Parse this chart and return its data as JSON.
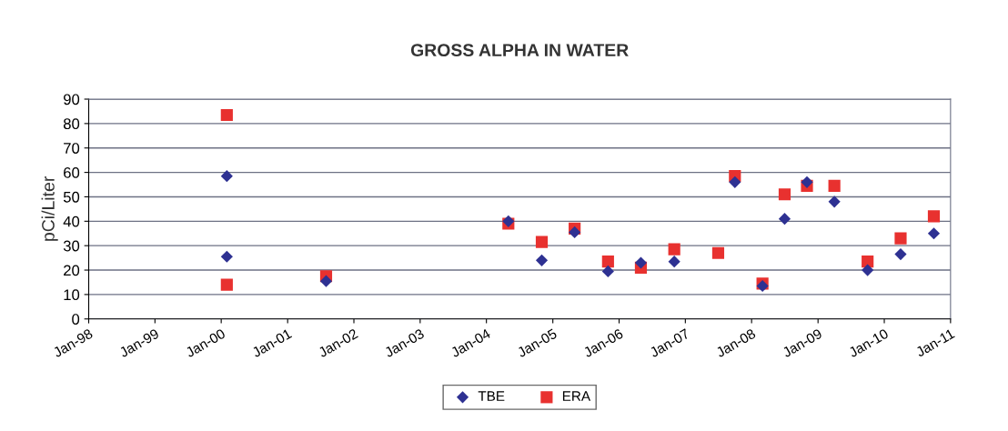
{
  "chart_data": {
    "type": "scatter",
    "title": "GROSS ALPHA IN WATER",
    "ylabel": "pCi/Liter",
    "xlim": [
      "1998-01-01",
      "2011-01-01"
    ],
    "xticks": [
      {
        "value": "1998-01-01",
        "label": "Jan-98"
      },
      {
        "value": "1999-01-01",
        "label": "Jan-99"
      },
      {
        "value": "2000-01-01",
        "label": "Jan-00"
      },
      {
        "value": "2001-01-01",
        "label": "Jan-01"
      },
      {
        "value": "2002-01-01",
        "label": "Jan-02"
      },
      {
        "value": "2003-01-01",
        "label": "Jan-03"
      },
      {
        "value": "2004-01-01",
        "label": "Jan-04"
      },
      {
        "value": "2005-01-01",
        "label": "Jan-05"
      },
      {
        "value": "2006-01-01",
        "label": "Jan-06"
      },
      {
        "value": "2007-01-01",
        "label": "Jan-07"
      },
      {
        "value": "2008-01-01",
        "label": "Jan-08"
      },
      {
        "value": "2009-01-01",
        "label": "Jan-09"
      },
      {
        "value": "2010-01-01",
        "label": "Jan-10"
      },
      {
        "value": "2011-01-01",
        "label": "Jan-11"
      }
    ],
    "ylim": [
      0,
      90
    ],
    "yticks": [
      0,
      10,
      20,
      30,
      40,
      50,
      60,
      70,
      80,
      90
    ],
    "grid": "y",
    "legend": "bottom",
    "series": [
      {
        "name": "TBE",
        "color": "#2e3192",
        "marker": "diamond",
        "x": [
          "2000-02",
          "2000-02",
          "2001-08",
          "2004-05",
          "2004-11",
          "2005-05",
          "2005-11",
          "2006-05",
          "2006-11",
          "2007-10",
          "2008-03",
          "2008-07",
          "2008-11",
          "2009-04",
          "2009-10",
          "2010-04",
          "2010-10"
        ],
        "values": [
          58.5,
          25.5,
          15.5,
          40,
          24,
          35.5,
          19.5,
          23,
          23.5,
          56,
          13.5,
          41,
          56,
          48,
          20,
          26.5,
          35
        ]
      },
      {
        "name": "ERA",
        "color": "#e8312f",
        "marker": "square",
        "x": [
          "2000-02",
          "2000-02",
          "2001-08",
          "2004-05",
          "2004-11",
          "2005-05",
          "2005-11",
          "2006-05",
          "2006-11",
          "2007-07",
          "2007-10",
          "2008-03",
          "2008-07",
          "2008-11",
          "2009-04",
          "2009-10",
          "2010-04",
          "2010-10"
        ],
        "values": [
          83.5,
          14,
          17.5,
          39,
          31.5,
          37,
          23.5,
          21,
          28.5,
          27,
          58.5,
          14.5,
          51,
          54.5,
          54.5,
          23.5,
          33,
          42
        ]
      }
    ]
  }
}
